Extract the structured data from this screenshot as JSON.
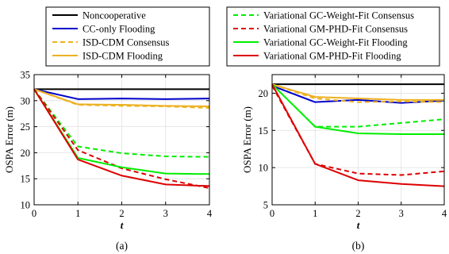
{
  "chart_data": [
    {
      "type": "line",
      "caption": "(a)",
      "xlabel": "t",
      "ylabel": "OSPA Error (m)",
      "x": [
        0,
        1,
        2,
        3,
        4
      ],
      "xticks": [
        "0",
        "1",
        "2",
        "3",
        "4"
      ],
      "xlim": [
        0,
        4
      ],
      "ylim": [
        10,
        35
      ],
      "yticks": [
        "10",
        "15",
        "20",
        "25",
        "30",
        "35"
      ],
      "grid": true,
      "legend_placement": "above",
      "series": [
        {
          "name": "Noncooperative",
          "color": "#000000",
          "style": "solid",
          "values": [
            32.2,
            32.2,
            32.2,
            32.2,
            32.2
          ]
        },
        {
          "name": "CC-only Flooding",
          "color": "#0000cc",
          "style": "solid",
          "values": [
            32.2,
            30.3,
            30.4,
            30.3,
            30.4
          ]
        },
        {
          "name": "ISD-CDM Consensus",
          "color": "#edb120",
          "style": "dashed",
          "values": [
            32.2,
            29.2,
            29.0,
            28.9,
            28.6
          ]
        },
        {
          "name": "ISD-CDM Flooding",
          "color": "#edb120",
          "style": "solid",
          "values": [
            32.2,
            29.3,
            29.2,
            29.0,
            28.9
          ]
        },
        {
          "name": "Variational GC-Weight-Fit Consensus",
          "color": "#00ee00",
          "style": "dashed",
          "values": [
            32.2,
            21.2,
            19.9,
            19.3,
            19.2
          ]
        },
        {
          "name": "Variational GM-PHD-Fit Consensus",
          "color": "#dd0000",
          "style": "dashed",
          "values": [
            32.2,
            20.5,
            17.0,
            14.9,
            13.2
          ]
        },
        {
          "name": "Variational GC-Weight-Fit Flooding",
          "color": "#00ee00",
          "style": "solid",
          "values": [
            32.2,
            19.0,
            17.2,
            16.0,
            15.9
          ]
        },
        {
          "name": "Variational GM-PHD-Fit Flooding",
          "color": "#dd0000",
          "style": "solid",
          "values": [
            32.2,
            18.7,
            15.6,
            13.9,
            13.6
          ]
        }
      ]
    },
    {
      "type": "line",
      "caption": "(b)",
      "xlabel": "t",
      "ylabel": "OSPA Error (m)",
      "x": [
        0,
        1,
        2,
        3,
        4
      ],
      "xticks": [
        "0",
        "1",
        "2",
        "3",
        "4"
      ],
      "xlim": [
        0,
        4
      ],
      "ylim": [
        5,
        22.5
      ],
      "yticks": [
        "5",
        "10",
        "15",
        "20"
      ],
      "grid": true,
      "legend_placement": "above",
      "series": [
        {
          "name": "Noncooperative",
          "color": "#000000",
          "style": "solid",
          "values": [
            21.2,
            21.2,
            21.2,
            21.2,
            21.2
          ]
        },
        {
          "name": "CC-only Flooding",
          "color": "#0000cc",
          "style": "solid",
          "values": [
            21.0,
            18.8,
            19.1,
            18.7,
            19.0
          ]
        },
        {
          "name": "ISD-CDM Consensus",
          "color": "#edb120",
          "style": "dashed",
          "values": [
            21.2,
            19.3,
            18.8,
            18.9,
            18.8
          ]
        },
        {
          "name": "ISD-CDM Flooding",
          "color": "#edb120",
          "style": "solid",
          "values": [
            21.2,
            19.5,
            19.3,
            19.1,
            19.1
          ]
        },
        {
          "name": "Variational GC-Weight-Fit Consensus",
          "color": "#00ee00",
          "style": "dashed",
          "values": [
            21.2,
            15.5,
            15.5,
            16.0,
            16.5
          ]
        },
        {
          "name": "Variational GM-PHD-Fit Consensus",
          "color": "#dd0000",
          "style": "dashed",
          "values": [
            21.0,
            10.5,
            9.2,
            9.0,
            9.5
          ]
        },
        {
          "name": "Variational GC-Weight-Fit Flooding",
          "color": "#00ee00",
          "style": "solid",
          "values": [
            21.2,
            15.5,
            14.6,
            14.5,
            14.5
          ]
        },
        {
          "name": "Variational GM-PHD-Fit Flooding",
          "color": "#dd0000",
          "style": "solid",
          "values": [
            21.2,
            10.5,
            8.3,
            7.8,
            7.5
          ]
        }
      ]
    }
  ],
  "legend": {
    "left": [
      {
        "label": "Noncooperative",
        "color": "#000000",
        "style": "solid"
      },
      {
        "label": "CC-only Flooding",
        "color": "#0000cc",
        "style": "solid"
      },
      {
        "label": "ISD-CDM Consensus",
        "color": "#edb120",
        "style": "dashed"
      },
      {
        "label": "ISD-CDM Flooding",
        "color": "#edb120",
        "style": "solid"
      }
    ],
    "right": [
      {
        "label": "Variational GC-Weight-Fit Consensus",
        "color": "#00ee00",
        "style": "dashed"
      },
      {
        "label": "Variational GM-PHD-Fit Consensus",
        "color": "#dd0000",
        "style": "dashed"
      },
      {
        "label": "Variational GC-Weight-Fit Flooding",
        "color": "#00ee00",
        "style": "solid"
      },
      {
        "label": "Variational GM-PHD-Fit Flooding",
        "color": "#dd0000",
        "style": "solid"
      }
    ]
  }
}
